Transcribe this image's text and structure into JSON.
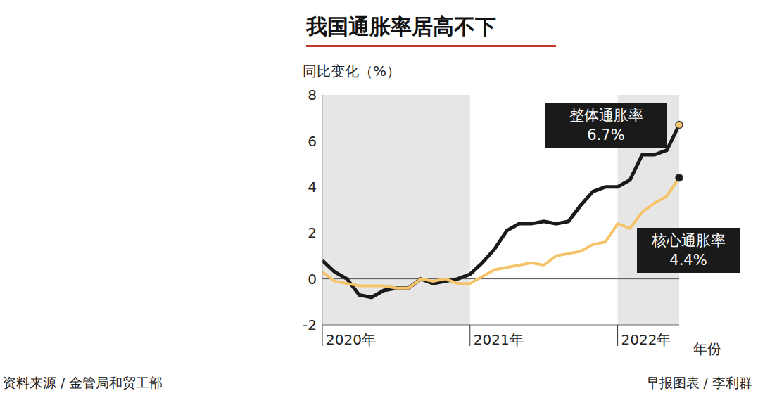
{
  "chart_data": {
    "type": "line",
    "title": "我国通胀率居高不下",
    "y_label": "同比变化（%）",
    "x_label": "年份",
    "categories": [
      "2020年",
      null,
      null,
      null,
      null,
      null,
      null,
      null,
      null,
      null,
      null,
      null,
      "2021年",
      null,
      null,
      null,
      null,
      null,
      null,
      null,
      null,
      null,
      null,
      null,
      "2022年",
      null,
      null,
      null,
      null,
      null
    ],
    "series": [
      {
        "name": "整体通胀率",
        "color": "#1a1a1a",
        "end_label": "6.7%",
        "values": [
          0.8,
          0.3,
          0.0,
          -0.7,
          -0.8,
          -0.5,
          -0.4,
          -0.4,
          0.0,
          -0.2,
          -0.1,
          0.0,
          0.2,
          0.7,
          1.3,
          2.1,
          2.4,
          2.4,
          2.5,
          2.4,
          2.5,
          3.2,
          3.8,
          4.0,
          4.0,
          4.3,
          5.4,
          5.4,
          5.6,
          6.7
        ]
      },
      {
        "name": "核心通胀率",
        "color": "#f5c46a",
        "end_label": "4.4%",
        "values": [
          0.3,
          -0.1,
          -0.2,
          -0.3,
          -0.3,
          -0.3,
          -0.4,
          -0.4,
          0.0,
          -0.1,
          0.0,
          -0.2,
          -0.2,
          0.1,
          0.4,
          0.5,
          0.6,
          0.7,
          0.6,
          1.0,
          1.1,
          1.2,
          1.5,
          1.6,
          2.4,
          2.2,
          2.9,
          3.3,
          3.6,
          4.4
        ]
      }
    ],
    "ylim": [
      -2,
      8
    ],
    "yticks": [
      -2,
      0,
      2,
      4,
      6,
      8
    ],
    "source": "资料来源 / 金管局和贸工部",
    "credit": "早报图表 / 李利群"
  }
}
